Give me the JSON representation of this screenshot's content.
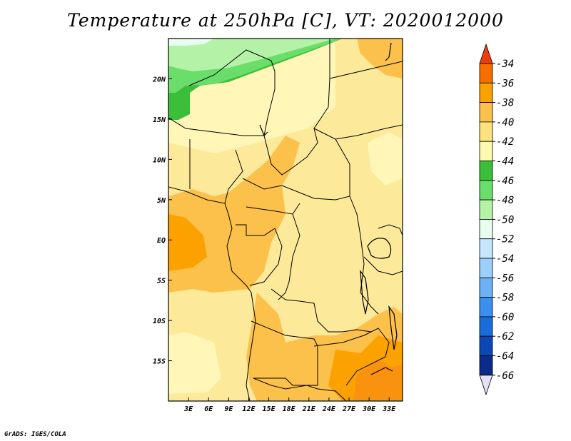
{
  "title": "Temperature at 250hPa [C], VT: 2020012000",
  "credit": "GrADS: IGES/COLA",
  "map": {
    "lon_range": [
      0,
      35
    ],
    "lat_range": [
      -20,
      25
    ],
    "y_tick_labels": [
      "20N",
      "15N",
      "10N",
      "5N",
      "EQ",
      "5S",
      "10S",
      "15S"
    ],
    "y_tick_values": [
      20,
      15,
      10,
      5,
      0,
      -5,
      -10,
      -15
    ],
    "x_tick_labels": [
      "3E",
      "6E",
      "9E",
      "12E",
      "15E",
      "18E",
      "21E",
      "24E",
      "27E",
      "30E",
      "33E"
    ],
    "x_tick_values": [
      3,
      6,
      9,
      12,
      15,
      18,
      21,
      24,
      27,
      30,
      33
    ]
  },
  "colorbar": {
    "labels": [
      "-34",
      "-36",
      "-38",
      "-40",
      "-42",
      "-44",
      "-46",
      "-48",
      "-50",
      "-52",
      "-54",
      "-56",
      "-58",
      "-60",
      "-62",
      "-64",
      "-66"
    ],
    "colors": [
      "#f03c0a",
      "#f76e00",
      "#fba200",
      "#fcc14a",
      "#fce37e",
      "#fff8b0",
      "#3bbf3b",
      "#6bdd6b",
      "#b4f2a8",
      "#e8fff0",
      "#c4e6ff",
      "#9ccffb",
      "#6cb0f5",
      "#3c8ff0",
      "#1a6cdb",
      "#0b48b7",
      "#0a2b8a",
      "#06136b",
      "#e5e0f5"
    ]
  }
}
